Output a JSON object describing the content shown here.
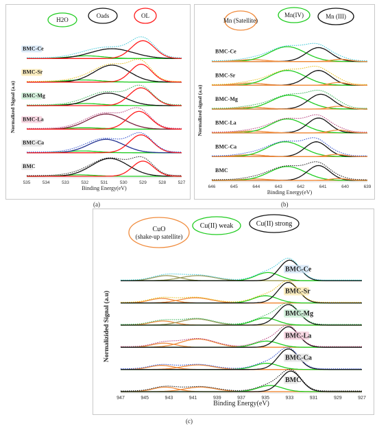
{
  "figure": {
    "captions": [
      "(a)",
      "(b)",
      "(c)"
    ]
  },
  "colors": {
    "green": "#1fcc1f",
    "red": "#ff1a1a",
    "black": "#111111",
    "orange": "#f08b3c",
    "darkred": "#7a1f3d",
    "baseline": "#c88a3a"
  },
  "chart_data": [
    {
      "id": "a",
      "type": "line",
      "xlabel": "Binding Energy(eV)",
      "ylabel": "Normalized Signal (a.u)",
      "xlim": [
        535,
        527
      ],
      "xticks": [
        535,
        534,
        533,
        532,
        531,
        530,
        529,
        528,
        527
      ],
      "legend": [
        {
          "label": "H2O",
          "color": "#1fcc1f"
        },
        {
          "label": "Oads",
          "color": "#111111"
        },
        {
          "label": "OL",
          "color": "#ff1a1a"
        }
      ],
      "samples": [
        {
          "name": "BMC-Ce",
          "label_bg": "#cfe3f7",
          "peaks": [
            {
              "type": "H2O",
              "center": 531.9,
              "width": 0.9,
              "height": 0.15,
              "color": "#1fcc1f"
            },
            {
              "type": "Oads",
              "center": 530.6,
              "width": 1.1,
              "height": 0.55,
              "color": "#111111"
            },
            {
              "type": "OL",
              "center": 529.0,
              "width": 0.6,
              "height": 1.0,
              "color": "#ff1a1a"
            }
          ],
          "fit_color": "#2ec4d6"
        },
        {
          "name": "BMC-Sr",
          "label_bg": "#fbe7a6",
          "peaks": [
            {
              "type": "H2O",
              "center": 532.1,
              "width": 0.9,
              "height": 0.12,
              "color": "#1fcc1f"
            },
            {
              "type": "Oads",
              "center": 530.6,
              "width": 0.9,
              "height": 0.95,
              "color": "#111111"
            },
            {
              "type": "OL",
              "center": 529.1,
              "width": 0.55,
              "height": 1.0,
              "color": "#ff1a1a"
            }
          ],
          "fit_color": "#e6b800"
        },
        {
          "name": "BMC-Mg",
          "label_bg": "#c5ecd0",
          "peaks": [
            {
              "type": "H2O",
              "center": 532.0,
              "width": 0.9,
              "height": 0.12,
              "color": "#1fcc1f"
            },
            {
              "type": "Oads",
              "center": 530.8,
              "width": 0.9,
              "height": 0.7,
              "color": "#111111"
            },
            {
              "type": "OL",
              "center": 529.1,
              "width": 0.6,
              "height": 1.0,
              "color": "#ff1a1a"
            }
          ],
          "fit_color": "#22aa44"
        },
        {
          "name": "BMC-La",
          "label_bg": "#f4c6d6",
          "peaks": [
            {
              "type": "H2O",
              "center": 532.0,
              "width": 0.9,
              "height": 0.08,
              "color": "#1fcc1f"
            },
            {
              "type": "Oads",
              "center": 530.9,
              "width": 0.95,
              "height": 0.85,
              "color": "#7a1f3d"
            },
            {
              "type": "OL",
              "center": 529.2,
              "width": 0.6,
              "height": 1.0,
              "color": "#ff1a1a"
            }
          ],
          "fit_color": "#b03070"
        },
        {
          "name": "BMC-Ca",
          "label_bg": "#e0e0e0",
          "peaks": [
            {
              "type": "H2O",
              "center": 532.1,
              "width": 0.8,
              "height": 0.1,
              "color": "#1fcc1f"
            },
            {
              "type": "Oads",
              "center": 530.9,
              "width": 0.9,
              "height": 0.75,
              "color": "#1f2f8f"
            },
            {
              "type": "OL",
              "center": 529.1,
              "width": 0.6,
              "height": 1.0,
              "color": "#ff1a1a"
            }
          ],
          "fit_color": "#2244cc"
        },
        {
          "name": "BMC",
          "label_bg": "#e6e6e6",
          "peaks": [
            {
              "type": "H2O",
              "center": 532.3,
              "width": 0.8,
              "height": 0.08,
              "color": "#1fcc1f"
            },
            {
              "type": "Oads",
              "center": 530.7,
              "width": 0.95,
              "height": 1.0,
              "color": "#111111"
            },
            {
              "type": "OL",
              "center": 529.0,
              "width": 0.55,
              "height": 0.85,
              "color": "#ff1a1a"
            }
          ],
          "fit_color": "#111111"
        }
      ]
    },
    {
      "id": "b",
      "type": "line",
      "xlabel": "Binding Energy(eV)",
      "ylabel": "Normalized signal (a.u)",
      "xlim": [
        646,
        639
      ],
      "xticks": [
        646,
        645,
        644,
        643,
        642,
        641,
        640,
        639
      ],
      "legend": [
        {
          "label": "Mn (Satellite)",
          "color": "#f08b3c"
        },
        {
          "label": "Mn(IV)",
          "color": "#1fcc1f"
        },
        {
          "label": "Mn (III)",
          "color": "#111111"
        }
      ],
      "samples": [
        {
          "name": "BMC-Ce",
          "peaks": [
            {
              "type": "sat",
              "center": 644.2,
              "width": 0.6,
              "height": 0.1,
              "color": "#f08b3c"
            },
            {
              "type": "MnIV",
              "center": 642.6,
              "width": 0.8,
              "height": 0.8,
              "color": "#1fcc1f"
            },
            {
              "type": "MnIII",
              "center": 641.2,
              "width": 0.55,
              "height": 0.75,
              "color": "#111111"
            },
            {
              "type": "sat2",
              "center": 640.2,
              "width": 0.4,
              "height": 0.12,
              "color": "#f08b3c"
            }
          ],
          "fit_color": "#2ec4d6"
        },
        {
          "name": "BMC-Sr",
          "peaks": [
            {
              "type": "sat",
              "center": 644.3,
              "width": 0.6,
              "height": 0.12,
              "color": "#f08b3c"
            },
            {
              "type": "MnIV",
              "center": 642.6,
              "width": 0.8,
              "height": 0.8,
              "color": "#1fcc1f"
            },
            {
              "type": "MnIII",
              "center": 641.2,
              "width": 0.55,
              "height": 0.8,
              "color": "#111111"
            },
            {
              "type": "sat2",
              "center": 640.3,
              "width": 0.4,
              "height": 0.15,
              "color": "#f08b3c"
            }
          ],
          "fit_color": "#e6b800"
        },
        {
          "name": "BMC-Mg",
          "peaks": [
            {
              "type": "sat",
              "center": 644.2,
              "width": 0.6,
              "height": 0.1,
              "color": "#f08b3c"
            },
            {
              "type": "MnIV",
              "center": 642.5,
              "width": 0.8,
              "height": 0.75,
              "color": "#1fcc1f"
            },
            {
              "type": "MnIII",
              "center": 641.1,
              "width": 0.55,
              "height": 0.8,
              "color": "#111111"
            },
            {
              "type": "sat2",
              "center": 640.3,
              "width": 0.4,
              "height": 0.15,
              "color": "#f08b3c"
            }
          ],
          "fit_color": "#22aa44"
        },
        {
          "name": "BMC-La",
          "peaks": [
            {
              "type": "sat",
              "center": 644.2,
              "width": 0.6,
              "height": 0.1,
              "color": "#f08b3c"
            },
            {
              "type": "MnIV",
              "center": 642.6,
              "width": 0.75,
              "height": 0.75,
              "color": "#1fcc1f"
            },
            {
              "type": "MnIII",
              "center": 641.2,
              "width": 0.5,
              "height": 0.8,
              "color": "#111111"
            },
            {
              "type": "sat2",
              "center": 640.3,
              "width": 0.4,
              "height": 0.15,
              "color": "#f08b3c"
            }
          ],
          "fit_color": "#b03070"
        },
        {
          "name": "BMC-Ca",
          "peaks": [
            {
              "type": "sat",
              "center": 644.3,
              "width": 0.6,
              "height": 0.1,
              "color": "#f08b3c"
            },
            {
              "type": "MnIV",
              "center": 642.7,
              "width": 0.8,
              "height": 0.8,
              "color": "#1fcc1f"
            },
            {
              "type": "MnIII",
              "center": 641.3,
              "width": 0.5,
              "height": 0.8,
              "color": "#111111"
            },
            {
              "type": "sat2",
              "center": 640.4,
              "width": 0.4,
              "height": 0.12,
              "color": "#f08b3c"
            }
          ],
          "fit_color": "#2244cc"
        },
        {
          "name": "BMC",
          "peaks": [
            {
              "type": "sat",
              "center": 644.1,
              "width": 0.6,
              "height": 0.08,
              "color": "#f08b3c"
            },
            {
              "type": "MnIV",
              "center": 642.6,
              "width": 0.8,
              "height": 0.75,
              "color": "#1fcc1f"
            },
            {
              "type": "MnIII",
              "center": 641.2,
              "width": 0.5,
              "height": 0.8,
              "color": "#111111"
            },
            {
              "type": "sat2",
              "center": 640.3,
              "width": 0.4,
              "height": 0.1,
              "color": "#f08b3c"
            }
          ],
          "fit_color": "#111111"
        }
      ]
    },
    {
      "id": "c",
      "type": "line",
      "xlabel": "Binding Energy(eV)",
      "ylabel": "Normalizided Signal (a.u)",
      "xlim": [
        947,
        927
      ],
      "xticks": [
        947,
        945,
        943,
        941,
        939,
        937,
        935,
        933,
        931,
        929,
        927
      ],
      "legend": [
        {
          "label": "CuO",
          "label2": "(shake-up satellite)",
          "color": "#f08b3c"
        },
        {
          "label": "Cu(II) weak",
          "color": "#1fcc1f"
        },
        {
          "label": "Cu(II) strong",
          "color": "#111111"
        }
      ],
      "samples": [
        {
          "name": "BMC-Ce",
          "label_bg": "#cfe3f7",
          "peaks": [
            {
              "type": "sat1",
              "center": 943.2,
              "width": 1.1,
              "height": 0.25,
              "color": "#9a9a5a"
            },
            {
              "type": "sat2",
              "center": 940.6,
              "width": 1.4,
              "height": 0.25,
              "color": "#9a9a5a"
            },
            {
              "type": "weak",
              "center": 934.8,
              "width": 1.0,
              "height": 0.4,
              "color": "#1fcc1f"
            },
            {
              "type": "strong",
              "center": 933.0,
              "width": 0.85,
              "height": 1.0,
              "color": "#111111"
            }
          ],
          "fit_color": "#2ec4d6"
        },
        {
          "name": "BMC-Sr",
          "label_bg": "#fbe7a6",
          "peaks": [
            {
              "type": "sat1",
              "center": 943.6,
              "width": 1.0,
              "height": 0.22,
              "color": "#f08b3c"
            },
            {
              "type": "sat2",
              "center": 940.8,
              "width": 1.3,
              "height": 0.25,
              "color": "#f08b3c"
            },
            {
              "type": "weak",
              "center": 935.0,
              "width": 1.0,
              "height": 0.35,
              "color": "#1fcc1f"
            },
            {
              "type": "strong",
              "center": 933.1,
              "width": 0.85,
              "height": 1.0,
              "color": "#111111"
            }
          ],
          "fit_color": "#e6b800"
        },
        {
          "name": "BMC-Mg",
          "label_bg": "#c5ecd0",
          "peaks": [
            {
              "type": "sat1",
              "center": 943.5,
              "width": 1.0,
              "height": 0.2,
              "color": "#f08b3c"
            },
            {
              "type": "sat2",
              "center": 940.7,
              "width": 1.3,
              "height": 0.3,
              "color": "#9a9a5a"
            },
            {
              "type": "weak",
              "center": 935.0,
              "width": 1.0,
              "height": 0.35,
              "color": "#1fcc1f"
            },
            {
              "type": "strong",
              "center": 933.1,
              "width": 0.9,
              "height": 1.0,
              "color": "#111111"
            }
          ],
          "fit_color": "#22aa44"
        },
        {
          "name": "BMC-La",
          "label_bg": "#f4c6d6",
          "peaks": [
            {
              "type": "sat1",
              "center": 943.4,
              "width": 1.0,
              "height": 0.2,
              "color": "#f08b3c"
            },
            {
              "type": "sat2",
              "center": 940.6,
              "width": 1.4,
              "height": 0.4,
              "color": "#f08b3c"
            },
            {
              "type": "weak",
              "center": 934.9,
              "width": 1.0,
              "height": 0.3,
              "color": "#1fcc1f"
            },
            {
              "type": "strong",
              "center": 933.1,
              "width": 0.85,
              "height": 1.0,
              "color": "#111111"
            }
          ],
          "fit_color": "#b03070"
        },
        {
          "name": "BMC-Ca",
          "label_bg": "#e0e0e0",
          "peaks": [
            {
              "type": "sat1",
              "center": 943.6,
              "width": 1.0,
              "height": 0.2,
              "color": "#f08b3c"
            },
            {
              "type": "sat2",
              "center": 940.6,
              "width": 1.3,
              "height": 0.22,
              "color": "#f08b3c"
            },
            {
              "type": "weak",
              "center": 934.9,
              "width": 1.0,
              "height": 0.3,
              "color": "#1fcc1f"
            },
            {
              "type": "strong",
              "center": 933.1,
              "width": 0.85,
              "height": 1.0,
              "color": "#111111"
            }
          ],
          "fit_color": "#2244cc"
        },
        {
          "name": "BMC",
          "label_bg": "#e6e6e6",
          "peaks": [
            {
              "type": "sat1",
              "center": 943.3,
              "width": 1.0,
              "height": 0.22,
              "color": "#f08b3c"
            },
            {
              "type": "sat2",
              "center": 940.4,
              "width": 1.3,
              "height": 0.22,
              "color": "#f08b3c"
            },
            {
              "type": "weak",
              "center": 934.6,
              "width": 1.0,
              "height": 0.3,
              "color": "#1fcc1f"
            },
            {
              "type": "strong",
              "center": 932.9,
              "width": 0.85,
              "height": 1.0,
              "color": "#111111"
            }
          ],
          "fit_color": "#111111"
        }
      ]
    }
  ]
}
